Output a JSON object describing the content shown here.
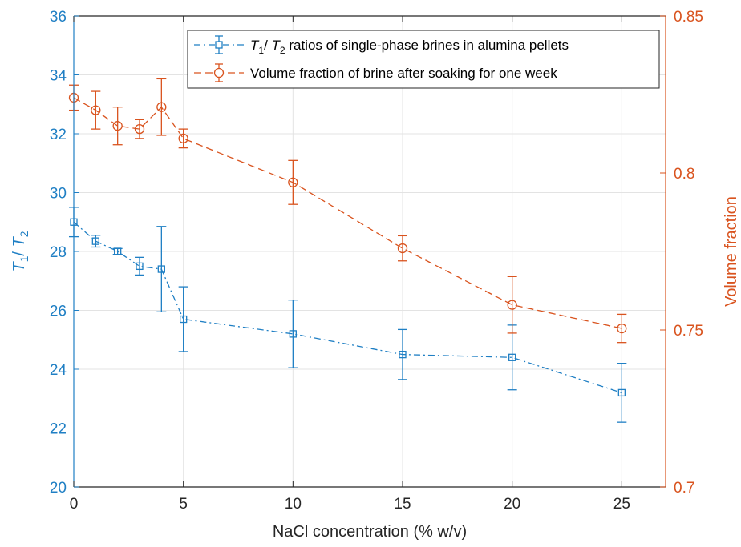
{
  "chart_data": {
    "type": "line",
    "xlabel": "NaCl concentration (% w/v)",
    "ylabel_left": {
      "parts": [
        "T",
        "1",
        "/ ",
        "T",
        "2"
      ]
    },
    "ylabel_right": "Volume fraction",
    "xlim": [
      0,
      27
    ],
    "ylim_left": [
      20,
      36
    ],
    "ylim_right": [
      0.7,
      0.85
    ],
    "x_ticks": [
      0,
      5,
      10,
      15,
      20,
      25
    ],
    "x_tick_labels": [
      "0",
      "5",
      "10",
      "15",
      "20",
      "25"
    ],
    "y_left_ticks": [
      20,
      22,
      24,
      26,
      28,
      30,
      32,
      34,
      36
    ],
    "y_left_tick_labels": [
      "20",
      "22",
      "24",
      "26",
      "28",
      "30",
      "32",
      "34",
      "36"
    ],
    "y_right_ticks": [
      0.7,
      0.75,
      0.8,
      0.85
    ],
    "y_right_tick_labels": [
      "0.7",
      "0.75",
      "0.8",
      "0.85"
    ],
    "grid": true,
    "legend_position": "top-right",
    "colors": {
      "left": "#1f7fc4",
      "right": "#d9531e",
      "grid": "#e3e3e3",
      "text": "#262626"
    },
    "series": [
      {
        "name_parts": [
          "T",
          "1",
          "/ ",
          "T",
          "2",
          " ratios of single-phase brines in alumina pellets"
        ],
        "axis": "left",
        "marker": "square",
        "line_style": "dash-dot",
        "x": [
          0,
          1,
          2,
          3,
          4,
          5,
          10,
          15,
          20,
          25
        ],
        "y": [
          29.0,
          28.35,
          28.0,
          27.5,
          27.4,
          25.7,
          25.2,
          24.5,
          24.4,
          23.2
        ],
        "y_err": [
          0.5,
          0.2,
          0.1,
          0.3,
          1.45,
          1.1,
          1.15,
          0.85,
          1.1,
          1.0
        ]
      },
      {
        "name": "Volume fraction of brine after soaking for one week",
        "axis": "right",
        "marker": "circle",
        "line_style": "dashed",
        "x": [
          0,
          1,
          2,
          3,
          4,
          5,
          10,
          15,
          20,
          25
        ],
        "y": [
          0.824,
          0.82,
          0.815,
          0.814,
          0.821,
          0.811,
          0.797,
          0.776,
          0.758,
          0.7505
        ],
        "y_err": [
          0.004,
          0.006,
          0.006,
          0.003,
          0.009,
          0.003,
          0.007,
          0.004,
          0.009,
          0.0045
        ]
      }
    ]
  }
}
